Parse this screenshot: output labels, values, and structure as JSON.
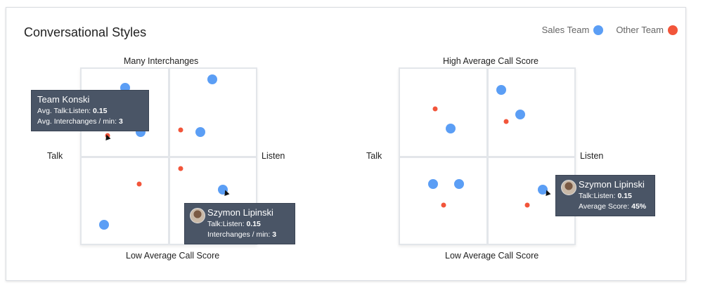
{
  "title": "Conversational Styles",
  "legend": [
    {
      "label": "Sales Team",
      "color": "#5b9ef5"
    },
    {
      "label": "Other Team",
      "color": "#f2553a"
    }
  ],
  "chart_data": [
    {
      "type": "scatter",
      "top_label": "Many Interchanges",
      "bottom_label": "Low Average Call Score",
      "left_label": "Talk",
      "right_label": "Listen",
      "xlim": [
        0,
        1
      ],
      "ylim": [
        0,
        1
      ],
      "series": [
        {
          "name": "Sales Team",
          "points": [
            [
              0.25,
              0.89
            ],
            [
              0.34,
              0.64
            ],
            [
              0.75,
              0.94
            ],
            [
              0.68,
              0.64
            ],
            [
              0.81,
              0.31
            ],
            [
              0.13,
              0.11
            ]
          ]
        },
        {
          "name": "Other Team",
          "points": [
            [
              0.15,
              0.62
            ],
            [
              0.57,
              0.65
            ],
            [
              0.57,
              0.43
            ],
            [
              0.33,
              0.34
            ]
          ]
        }
      ],
      "tooltips": [
        {
          "name": "Team Konski",
          "lines": [
            {
              "k": "Avg. Talk:Listen: ",
              "v": "0.15"
            },
            {
              "k": "Avg. Interchanges / min: ",
              "v": "3"
            }
          ]
        },
        {
          "name": "Szymon Lipinski",
          "lines": [
            {
              "k": "Talk:Listen: ",
              "v": "0.15"
            },
            {
              "k": "Interchanges / min: ",
              "v": "3"
            }
          ]
        }
      ]
    },
    {
      "type": "scatter",
      "top_label": "High Average Call Score",
      "bottom_label": "Low Average Call Score",
      "left_label": "Talk",
      "right_label": "Listen",
      "xlim": [
        0,
        1
      ],
      "ylim": [
        0,
        1
      ],
      "series": [
        {
          "name": "Sales Team",
          "points": [
            [
              0.29,
              0.66
            ],
            [
              0.58,
              0.88
            ],
            [
              0.69,
              0.74
            ],
            [
              0.19,
              0.34
            ],
            [
              0.34,
              0.34
            ],
            [
              0.82,
              0.31
            ]
          ]
        },
        {
          "name": "Other Team",
          "points": [
            [
              0.2,
              0.77
            ],
            [
              0.61,
              0.7
            ],
            [
              0.25,
              0.22
            ],
            [
              0.73,
              0.22
            ]
          ]
        }
      ],
      "tooltips": [
        {
          "name": "Szymon Lipinski",
          "lines": [
            {
              "k": "Talk:Listen: ",
              "v": "0.15"
            },
            {
              "k": "Average Score: ",
              "v": "45%"
            }
          ]
        }
      ]
    }
  ]
}
